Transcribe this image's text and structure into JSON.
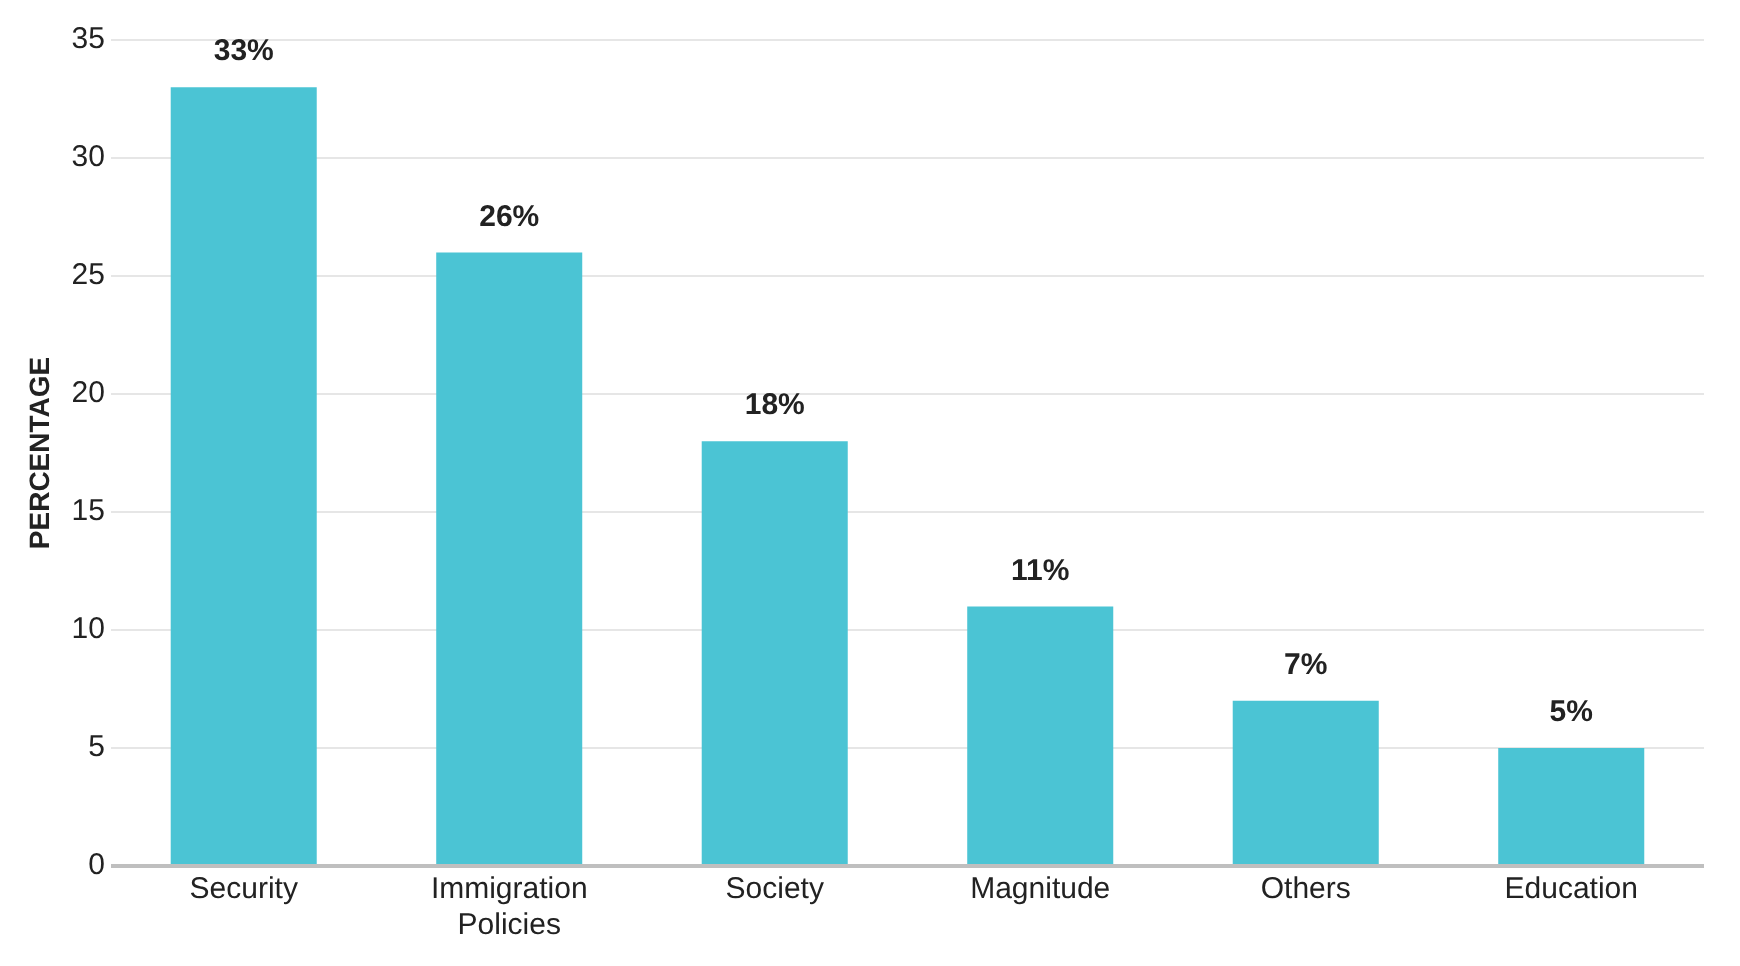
{
  "chart_data": {
    "type": "bar",
    "ylabel": "PERCENTAGE",
    "categories": [
      "Security",
      "Immigration Policies",
      "Society",
      "Magnitude",
      "Others",
      "Education"
    ],
    "values": [
      33,
      26,
      18,
      11,
      7,
      5
    ],
    "value_labels": [
      "33%",
      "26%",
      "18%",
      "11%",
      "7%",
      "5%"
    ],
    "color": "#4bc4d4",
    "ylim": [
      0,
      35
    ],
    "yticks": [
      0,
      5,
      10,
      15,
      20,
      25,
      30,
      35
    ],
    "grid": "y"
  }
}
